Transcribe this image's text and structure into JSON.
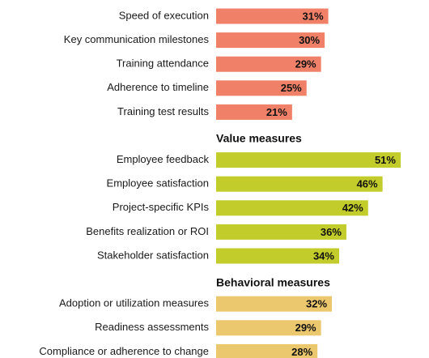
{
  "chart_data": {
    "type": "bar",
    "orientation": "horizontal",
    "value_format": "percent",
    "groups": [
      {
        "title": "",
        "color": "#f08168",
        "categories": [
          "Speed of execution",
          "Key communication milestones",
          "Training attendance",
          "Adherence to timeline",
          "Training test results"
        ],
        "values": [
          31,
          30,
          29,
          25,
          21
        ],
        "labels": [
          "31%",
          "30%",
          "29%",
          "25%",
          "21%"
        ]
      },
      {
        "title": "Value measures",
        "color": "#c2cc2a",
        "categories": [
          "Employee feedback",
          "Employee satisfaction",
          "Project-specific KPIs",
          "Benefits realization or ROI",
          "Stakeholder satisfaction"
        ],
        "values": [
          51,
          46,
          42,
          36,
          34
        ],
        "labels": [
          "51%",
          "46%",
          "42%",
          "36%",
          "34%"
        ]
      },
      {
        "title": "Behavioral measures",
        "color": "#ebc76e",
        "categories": [
          "Adoption or utilization measures",
          "Readiness assessments",
          "Compliance or adherence to change"
        ],
        "values": [
          32,
          29,
          28
        ],
        "labels": [
          "32%",
          "29%",
          "28%"
        ]
      }
    ]
  }
}
